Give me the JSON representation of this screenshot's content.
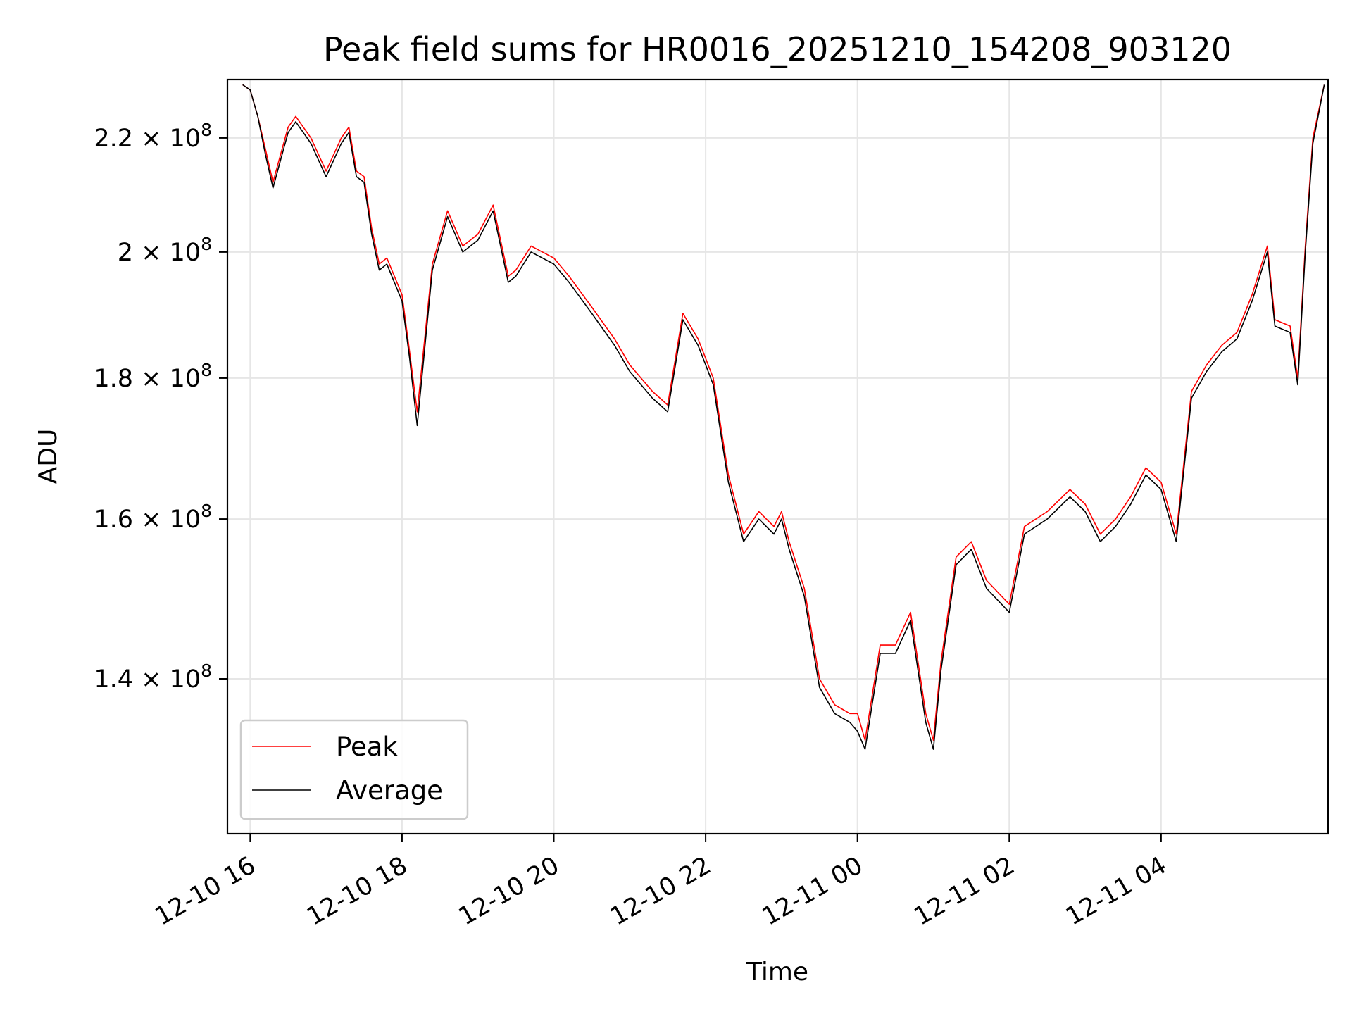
{
  "chart_data": {
    "type": "line",
    "title": "Peak field sums for HR0016_20251210_154208_903120",
    "xlabel": "Time",
    "ylabel": "ADU",
    "x_ticks": [
      "12-10 16",
      "12-10 18",
      "12-10 20",
      "12-10 22",
      "12-11 00",
      "12-11 02",
      "12-11 04"
    ],
    "y_ticks": [
      {
        "value": 140000000,
        "mantissa": "1.4",
        "exp": "8"
      },
      {
        "value": 160000000,
        "mantissa": "1.6",
        "exp": "8"
      },
      {
        "value": 180000000,
        "mantissa": "1.8",
        "exp": "8"
      },
      {
        "value": 200000000,
        "mantissa": "2",
        "exp": "8"
      },
      {
        "value": 220000000,
        "mantissa": "2.2",
        "exp": "8"
      }
    ],
    "y_scale": "log",
    "xlim_hours": [
      -0.3,
      14.2
    ],
    "ylim": [
      123000000,
      231000000
    ],
    "grid": true,
    "legend_position": "lower left",
    "series": [
      {
        "name": "Peak",
        "color": "#ff0000",
        "x_hours": [
          -0.1,
          0.0,
          0.1,
          0.2,
          0.3,
          0.4,
          0.5,
          0.6,
          0.8,
          1.0,
          1.2,
          1.3,
          1.4,
          1.5,
          1.6,
          1.7,
          1.8,
          2.0,
          2.1,
          2.2,
          2.4,
          2.6,
          2.8,
          3.0,
          3.2,
          3.4,
          3.5,
          3.7,
          4.0,
          4.2,
          4.5,
          4.8,
          5.0,
          5.3,
          5.5,
          5.7,
          5.9,
          6.0,
          6.1,
          6.3,
          6.5,
          6.7,
          6.9,
          7.0,
          7.1,
          7.3,
          7.5,
          7.7,
          7.9,
          8.0,
          8.1,
          8.3,
          8.5,
          8.7,
          8.9,
          9.0,
          9.1,
          9.3,
          9.5,
          9.7,
          10.0,
          10.2,
          10.5,
          10.8,
          11.0,
          11.2,
          11.4,
          11.6,
          11.8,
          12.0,
          12.2,
          12.4,
          12.6,
          12.8,
          13.0,
          13.2,
          13.4,
          13.5,
          13.7,
          13.8,
          13.9,
          14.0,
          14.15
        ],
        "values": [
          230000000,
          229000000,
          224000000,
          218000000,
          212000000,
          217000000,
          222000000,
          224000000,
          220000000,
          214000000,
          220000000,
          222000000,
          214000000,
          213000000,
          204000000,
          198000000,
          199000000,
          193000000,
          184000000,
          175000000,
          198000000,
          207000000,
          201000000,
          203000000,
          208000000,
          196000000,
          197000000,
          201000000,
          199000000,
          196000000,
          191000000,
          186000000,
          182000000,
          178000000,
          176000000,
          190000000,
          186000000,
          183000000,
          180000000,
          166000000,
          158000000,
          161000000,
          159000000,
          161000000,
          157000000,
          151000000,
          140000000,
          137000000,
          136000000,
          136000000,
          133000000,
          144000000,
          144000000,
          148000000,
          136000000,
          133000000,
          142000000,
          155000000,
          157000000,
          152000000,
          149000000,
          159000000,
          161000000,
          164000000,
          162000000,
          158000000,
          160000000,
          163000000,
          167000000,
          165000000,
          158000000,
          178000000,
          182000000,
          185000000,
          187000000,
          193000000,
          201000000,
          189000000,
          188000000,
          180000000,
          201000000,
          220000000,
          230000000
        ]
      },
      {
        "name": "Average",
        "color": "#000000",
        "x_hours": [
          -0.1,
          0.0,
          0.1,
          0.2,
          0.3,
          0.4,
          0.5,
          0.6,
          0.8,
          1.0,
          1.2,
          1.3,
          1.4,
          1.5,
          1.6,
          1.7,
          1.8,
          2.0,
          2.1,
          2.2,
          2.4,
          2.6,
          2.8,
          3.0,
          3.2,
          3.4,
          3.5,
          3.7,
          4.0,
          4.2,
          4.5,
          4.8,
          5.0,
          5.3,
          5.5,
          5.7,
          5.9,
          6.0,
          6.1,
          6.3,
          6.5,
          6.7,
          6.9,
          7.0,
          7.1,
          7.3,
          7.5,
          7.7,
          7.9,
          8.0,
          8.1,
          8.3,
          8.5,
          8.7,
          8.9,
          9.0,
          9.1,
          9.3,
          9.5,
          9.7,
          10.0,
          10.2,
          10.5,
          10.8,
          11.0,
          11.2,
          11.4,
          11.6,
          11.8,
          12.0,
          12.2,
          12.4,
          12.6,
          12.8,
          13.0,
          13.2,
          13.4,
          13.5,
          13.7,
          13.8,
          13.9,
          14.0,
          14.15
        ],
        "values": [
          230000000,
          229000000,
          224000000,
          217000000,
          211000000,
          216000000,
          221000000,
          223000000,
          219000000,
          213000000,
          219000000,
          221000000,
          213000000,
          212000000,
          203000000,
          197000000,
          198000000,
          192000000,
          183000000,
          173000000,
          197000000,
          206000000,
          200000000,
          202000000,
          207000000,
          195000000,
          196000000,
          200000000,
          198000000,
          195000000,
          190000000,
          185000000,
          181000000,
          177000000,
          175000000,
          189000000,
          185000000,
          182000000,
          179000000,
          165000000,
          157000000,
          160000000,
          158000000,
          160000000,
          156000000,
          150000000,
          139000000,
          136000000,
          135000000,
          134000000,
          132000000,
          143000000,
          143000000,
          147000000,
          135000000,
          132000000,
          141000000,
          154000000,
          156000000,
          151000000,
          148000000,
          158000000,
          160000000,
          163000000,
          161000000,
          157000000,
          159000000,
          162000000,
          166000000,
          164000000,
          157000000,
          177000000,
          181000000,
          184000000,
          186000000,
          192000000,
          200000000,
          188000000,
          187000000,
          179000000,
          200000000,
          219000000,
          230000000
        ]
      }
    ]
  }
}
